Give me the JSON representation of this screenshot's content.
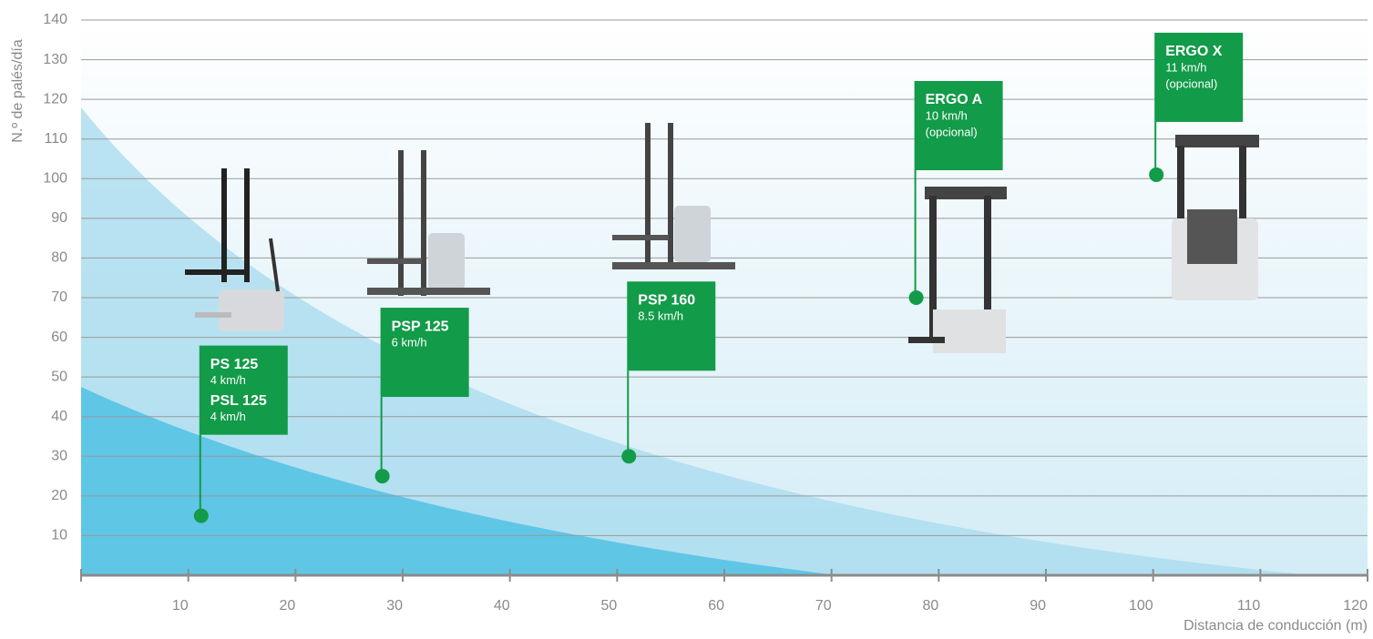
{
  "chart_data": {
    "type": "scatter",
    "y_label": "N.º de palés/día",
    "x_label": "Distancia de conducción (m)",
    "xlim": [
      0,
      120
    ],
    "xticks": [
      10,
      20,
      30,
      40,
      50,
      60,
      70,
      80,
      90,
      100,
      110,
      120
    ],
    "ylim": [
      0,
      140
    ],
    "yticks": [
      10,
      20,
      30,
      40,
      50,
      60,
      70,
      80,
      90,
      100,
      110,
      120,
      130,
      140
    ],
    "grid": true,
    "color": "#129b48",
    "x": [
      11.2,
      28.1,
      51.1,
      77.9,
      100.3
    ],
    "values": [
      15,
      25,
      30,
      70,
      101
    ],
    "point_labels": [
      [
        {
          "name": "PS 125",
          "speed": "4 km/h"
        },
        {
          "name": "PSL 125",
          "speed": "4 km/h"
        }
      ],
      [
        {
          "name": "PSP 125",
          "speed": "6 km/h"
        }
      ],
      [
        {
          "name": "PSP 160",
          "speed": "8.5 km/h"
        }
      ],
      [
        {
          "name": "ERGO A",
          "speed": "10 km/h",
          "note": "(opcional)"
        }
      ],
      [
        {
          "name": "ERGO X",
          "speed": "11 km/h",
          "note": "(opcional)"
        }
      ]
    ]
  }
}
